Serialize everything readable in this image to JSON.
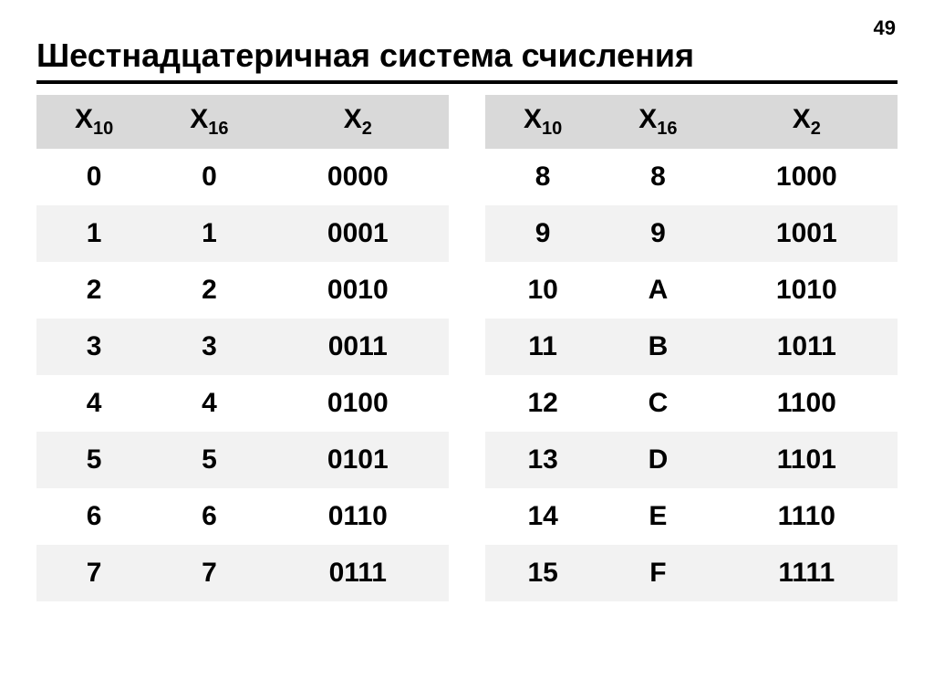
{
  "page_number": "49",
  "title": "Шестнадцатеричная система счисления",
  "colors": {
    "hex_column": "#0000cc",
    "header_bg": "#d9d9d9",
    "stripe_bg": "#f2f2f2",
    "text": "#000000",
    "background": "#ffffff"
  },
  "typography": {
    "title_fontsize": 36,
    "header_fontsize": 30,
    "cell_fontsize": 30,
    "page_number_fontsize": 22,
    "font_weight": "bold",
    "font_family": "Arial"
  },
  "table": {
    "type": "table",
    "columns": [
      {
        "base_label": "X",
        "subscript": "10"
      },
      {
        "base_label": "X",
        "subscript": "16"
      },
      {
        "base_label": "X",
        "subscript": "2"
      }
    ],
    "left_rows": [
      {
        "x10": "0",
        "x16": "0",
        "x2": "0000"
      },
      {
        "x10": "1",
        "x16": "1",
        "x2": "0001"
      },
      {
        "x10": "2",
        "x16": "2",
        "x2": "0010"
      },
      {
        "x10": "3",
        "x16": "3",
        "x2": "0011"
      },
      {
        "x10": "4",
        "x16": "4",
        "x2": "0100"
      },
      {
        "x10": "5",
        "x16": "5",
        "x2": "0101"
      },
      {
        "x10": "6",
        "x16": "6",
        "x2": "0110"
      },
      {
        "x10": "7",
        "x16": "7",
        "x2": "0111"
      }
    ],
    "right_rows": [
      {
        "x10": "8",
        "x16": "8",
        "x2": "1000"
      },
      {
        "x10": "9",
        "x16": "9",
        "x2": "1001"
      },
      {
        "x10": "10",
        "x16": "A",
        "x2": "1010"
      },
      {
        "x10": "11",
        "x16": "B",
        "x2": "1011"
      },
      {
        "x10": "12",
        "x16": "C",
        "x2": "1100"
      },
      {
        "x10": "13",
        "x16": "D",
        "x2": "1101"
      },
      {
        "x10": "14",
        "x16": "E",
        "x2": "1110"
      },
      {
        "x10": "15",
        "x16": "F",
        "x2": "1111"
      }
    ]
  }
}
